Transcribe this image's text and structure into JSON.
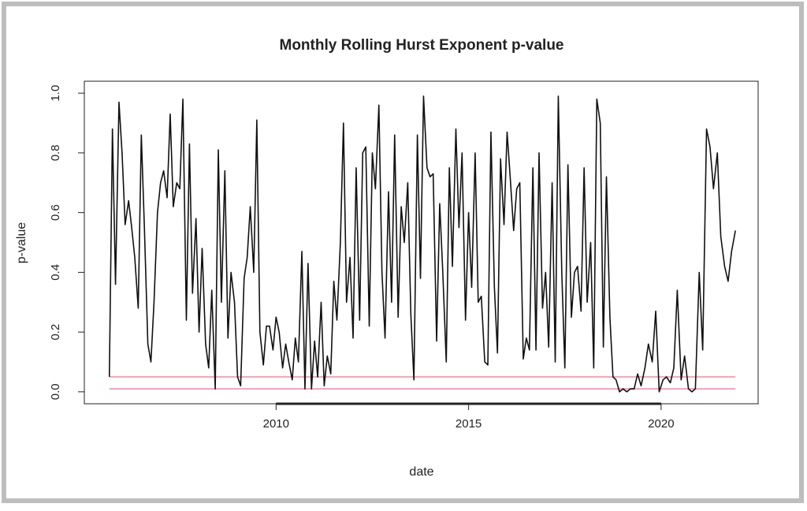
{
  "chart_data": {
    "type": "line",
    "title": "Monthly Rolling Hurst Exponent p-value",
    "xlabel": "date",
    "ylabel": "p-value",
    "xlim": [
      2005.02,
      2022.52
    ],
    "ylim": [
      -0.04,
      1.04
    ],
    "xticks": [
      2010,
      2015,
      2020
    ],
    "yticks": [
      {
        "value": 0,
        "label": "0.0"
      },
      0.2,
      0.4,
      0.6,
      0.8,
      {
        "value": 1,
        "label": "1.0"
      }
    ],
    "hlines": [
      {
        "value": 0.05,
        "color": "#f4a3b4"
      },
      {
        "value": 0.01,
        "color": "#f4a3b4"
      }
    ],
    "x": [
      2005.67,
      2005.75,
      2005.83,
      2005.92,
      2006.0,
      2006.08,
      2006.17,
      2006.25,
      2006.33,
      2006.42,
      2006.5,
      2006.58,
      2006.67,
      2006.75,
      2006.83,
      2006.92,
      2007.0,
      2007.08,
      2007.17,
      2007.25,
      2007.33,
      2007.42,
      2007.5,
      2007.58,
      2007.67,
      2007.75,
      2007.83,
      2007.92,
      2008.0,
      2008.08,
      2008.17,
      2008.25,
      2008.33,
      2008.42,
      2008.5,
      2008.58,
      2008.67,
      2008.75,
      2008.83,
      2008.92,
      2009.0,
      2009.08,
      2009.17,
      2009.25,
      2009.33,
      2009.42,
      2009.5,
      2009.58,
      2009.67,
      2009.75,
      2009.83,
      2009.92,
      2010.0,
      2010.08,
      2010.17,
      2010.25,
      2010.33,
      2010.42,
      2010.5,
      2010.58,
      2010.67,
      2010.75,
      2010.83,
      2010.92,
      2011.0,
      2011.08,
      2011.17,
      2011.25,
      2011.33,
      2011.42,
      2011.5,
      2011.58,
      2011.67,
      2011.75,
      2011.83,
      2011.92,
      2012.0,
      2012.08,
      2012.17,
      2012.25,
      2012.33,
      2012.42,
      2012.5,
      2012.58,
      2012.67,
      2012.75,
      2012.83,
      2012.92,
      2013.0,
      2013.08,
      2013.17,
      2013.25,
      2013.33,
      2013.42,
      2013.5,
      2013.58,
      2013.67,
      2013.75,
      2013.83,
      2013.92,
      2014.0,
      2014.08,
      2014.17,
      2014.25,
      2014.33,
      2014.42,
      2014.5,
      2014.58,
      2014.67,
      2014.75,
      2014.83,
      2014.92,
      2015.0,
      2015.08,
      2015.17,
      2015.25,
      2015.33,
      2015.42,
      2015.5,
      2015.58,
      2015.67,
      2015.75,
      2015.83,
      2015.92,
      2016.0,
      2016.08,
      2016.17,
      2016.25,
      2016.33,
      2016.42,
      2016.5,
      2016.58,
      2016.67,
      2016.75,
      2016.83,
      2016.92,
      2017.0,
      2017.08,
      2017.17,
      2017.25,
      2017.33,
      2017.42,
      2017.5,
      2017.58,
      2017.67,
      2017.75,
      2017.83,
      2017.92,
      2018.0,
      2018.08,
      2018.17,
      2018.25,
      2018.33,
      2018.42,
      2018.5,
      2018.58,
      2018.67,
      2018.75,
      2018.83,
      2018.92,
      2019.01,
      2019.11,
      2019.2,
      2019.3,
      2019.39,
      2019.48,
      2019.58,
      2019.67,
      2019.77,
      2019.86,
      2019.95,
      2020.05,
      2020.14,
      2020.24,
      2020.33,
      2020.42,
      2020.52,
      2020.61,
      2020.71,
      2020.8,
      2020.89,
      2020.99,
      2021.08,
      2021.18,
      2021.27,
      2021.36,
      2021.46,
      2021.55,
      2021.65,
      2021.74,
      2021.83,
      2021.93
    ],
    "series": [
      {
        "color": "#111111",
        "values": [
          0.05,
          0.88,
          0.36,
          0.97,
          0.8,
          0.56,
          0.64,
          0.55,
          0.45,
          0.28,
          0.86,
          0.55,
          0.16,
          0.1,
          0.3,
          0.6,
          0.7,
          0.74,
          0.65,
          0.93,
          0.62,
          0.7,
          0.68,
          0.98,
          0.24,
          0.83,
          0.33,
          0.58,
          0.2,
          0.48,
          0.16,
          0.08,
          0.34,
          0.01,
          0.81,
          0.3,
          0.74,
          0.18,
          0.4,
          0.3,
          0.05,
          0.02,
          0.38,
          0.45,
          0.62,
          0.4,
          0.91,
          0.2,
          0.09,
          0.22,
          0.22,
          0.14,
          0.25,
          0.2,
          0.08,
          0.16,
          0.1,
          0.04,
          0.18,
          0.1,
          0.47,
          0.01,
          0.43,
          0.01,
          0.17,
          0.05,
          0.3,
          0.02,
          0.12,
          0.06,
          0.37,
          0.24,
          0.5,
          0.9,
          0.3,
          0.45,
          0.18,
          0.75,
          0.24,
          0.8,
          0.82,
          0.22,
          0.8,
          0.68,
          0.96,
          0.4,
          0.18,
          0.67,
          0.3,
          0.86,
          0.25,
          0.62,
          0.5,
          0.7,
          0.26,
          0.04,
          0.86,
          0.38,
          0.99,
          0.75,
          0.72,
          0.73,
          0.17,
          0.63,
          0.4,
          0.1,
          0.75,
          0.42,
          0.88,
          0.55,
          0.8,
          0.24,
          0.6,
          0.35,
          0.8,
          0.3,
          0.32,
          0.1,
          0.09,
          0.87,
          0.35,
          0.13,
          0.78,
          0.56,
          0.87,
          0.72,
          0.54,
          0.68,
          0.7,
          0.11,
          0.18,
          0.14,
          0.75,
          0.14,
          0.8,
          0.28,
          0.4,
          0.15,
          0.7,
          0.1,
          0.99,
          0.4,
          0.08,
          0.76,
          0.25,
          0.4,
          0.42,
          0.27,
          0.75,
          0.3,
          0.5,
          0.08,
          0.98,
          0.9,
          0.15,
          0.72,
          0.25,
          0.05,
          0.04,
          0.0,
          0.01,
          0.0,
          0.01,
          0.01,
          0.06,
          0.02,
          0.08,
          0.16,
          0.1,
          0.27,
          0.0,
          0.04,
          0.05,
          0.03,
          0.08,
          0.34,
          0.04,
          0.12,
          0.01,
          0.0,
          0.01,
          0.4,
          0.14,
          0.88,
          0.82,
          0.68,
          0.8,
          0.52,
          0.42,
          0.37,
          0.47,
          0.54
        ]
      }
    ]
  }
}
